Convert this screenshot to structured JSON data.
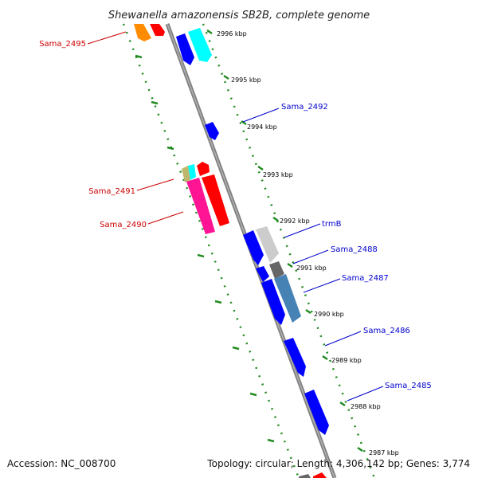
{
  "title": "Shewanella amazonensis SB2B, complete genome",
  "footer": {
    "accession": "Accession: NC_008700",
    "summary": "Topology: circular; Length: 4,306,142 bp; Genes: 3,774"
  },
  "kbp_labels": [
    "2996 kbp",
    "2995 kbp",
    "2994 kbp",
    "2993 kbp",
    "2992 kbp",
    "2991 kbp",
    "2990 kbp",
    "2989 kbp",
    "2988 kbp",
    "2987 kbp"
  ],
  "genes_reverse": [
    {
      "name": "Sama_2495",
      "color": "#cc0000"
    },
    {
      "name": "Sama_2491",
      "color": "#cc0000"
    },
    {
      "name": "Sama_2490",
      "color": "#cc0000"
    }
  ],
  "genes_forward": [
    {
      "name": "Sama_2492",
      "color": "#0000cc"
    },
    {
      "name": "trmB",
      "color": "#0000cc"
    },
    {
      "name": "Sama_2488",
      "color": "#0000cc"
    },
    {
      "name": "Sama_2487",
      "color": "#0000cc"
    },
    {
      "name": "Sama_2486",
      "color": "#0000cc"
    },
    {
      "name": "Sama_2485",
      "color": "#0000cc"
    }
  ],
  "colors": {
    "backbone": "#808080",
    "tick_track": "#228b22",
    "blue": "#0000ff",
    "cyan": "#00ffff",
    "red": "#ff0000",
    "pink": "#ff1493",
    "orange": "#ff8c00",
    "light_gray": "#cccccc",
    "dark_gray": "#666666",
    "steel_blue": "#4682b4"
  }
}
